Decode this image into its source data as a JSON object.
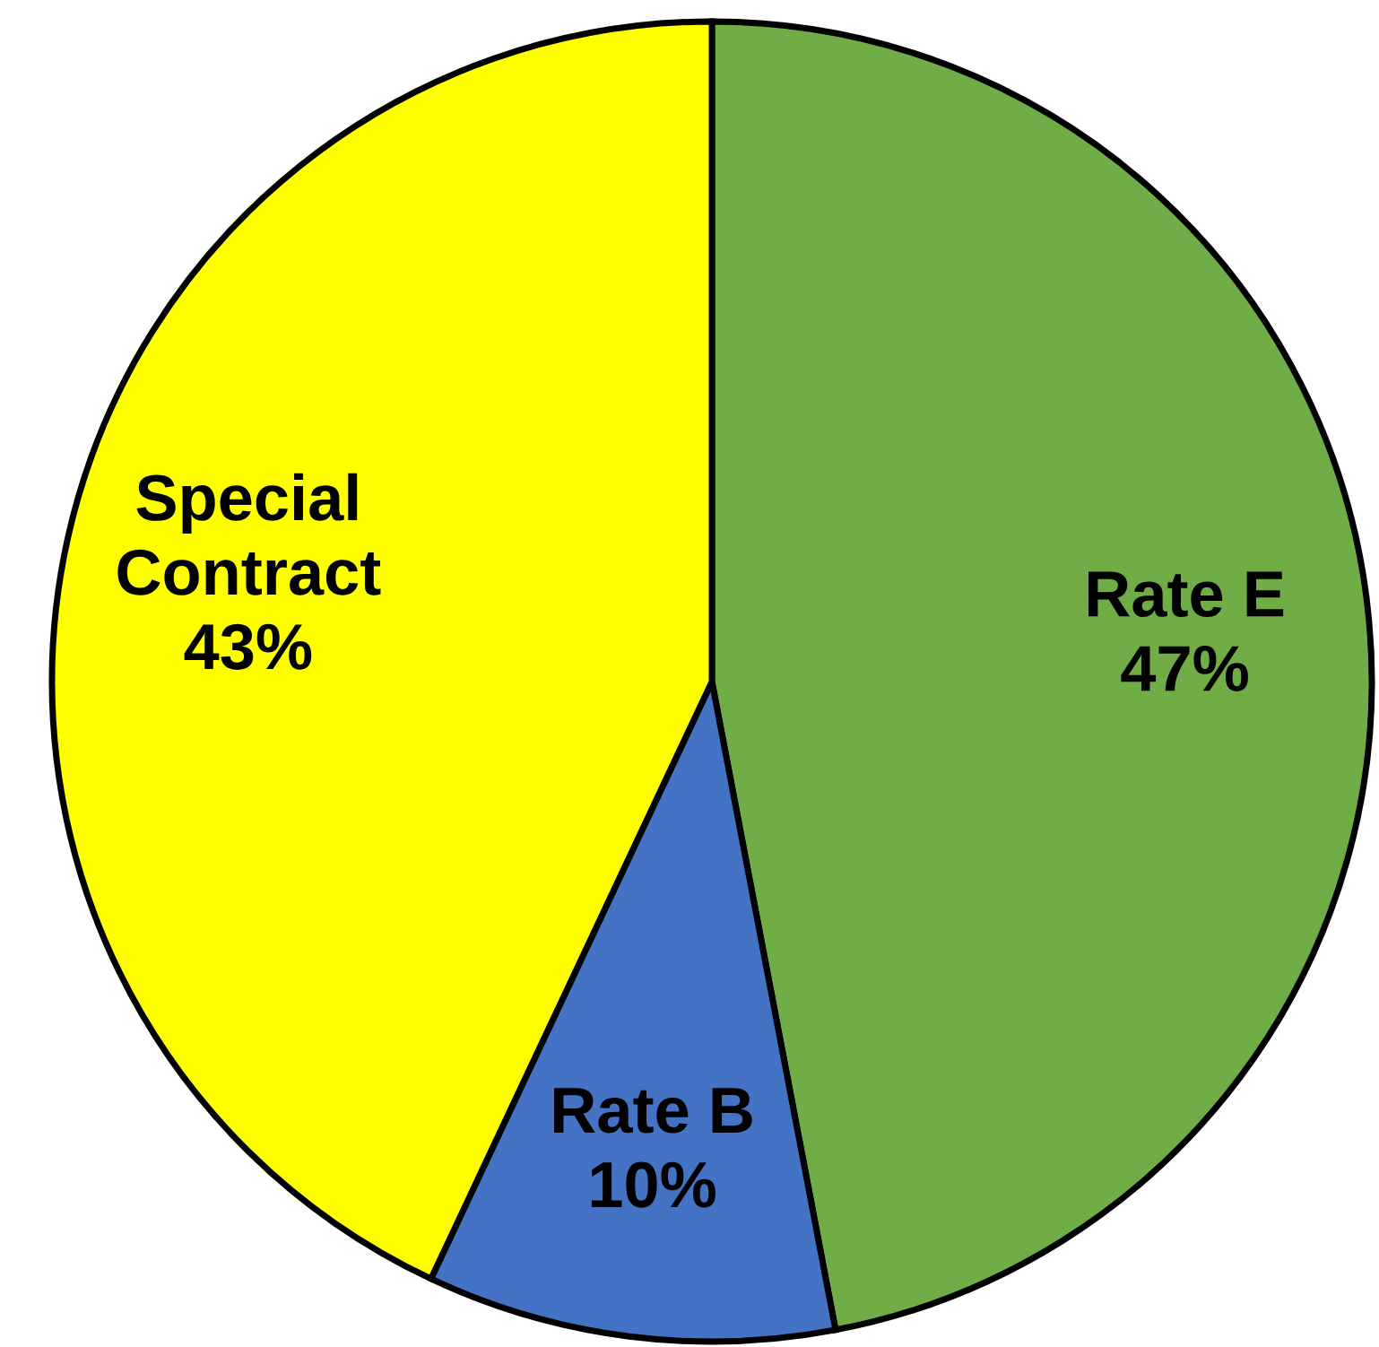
{
  "chart_data": {
    "type": "pie",
    "categories": [
      "Rate E",
      "Rate B",
      "Special Contract"
    ],
    "values": [
      47,
      10,
      43
    ],
    "value_labels": [
      "47%",
      "10%",
      "43%"
    ],
    "colors": [
      "#70ad47",
      "#4472c4",
      "#ffff00"
    ],
    "legend": false
  }
}
